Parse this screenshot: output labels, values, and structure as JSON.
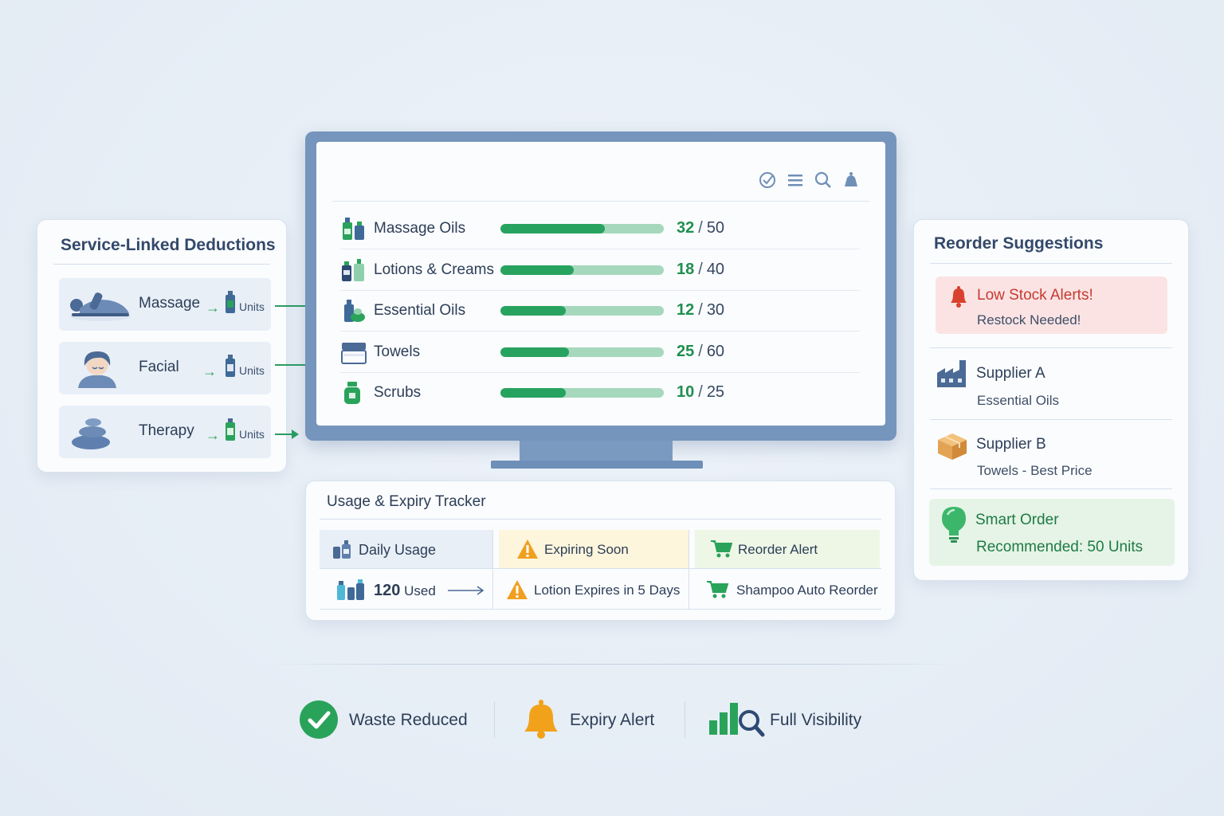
{
  "service_deductions": {
    "title": "Service-Linked Deductions",
    "services": [
      {
        "name": "Massage",
        "units_label": "Units",
        "icon": "massage-icon"
      },
      {
        "name": "Facial",
        "units_label": "Units",
        "icon": "facial-icon"
      },
      {
        "name": "Therapy",
        "units_label": "Units",
        "icon": "therapy-stones-icon"
      }
    ]
  },
  "inventory": {
    "toolbar_icons": [
      "check-circle-icon",
      "list-icon",
      "search-icon",
      "bell-icon"
    ],
    "items": [
      {
        "name": "Massage Oils",
        "current": "32",
        "total": "50",
        "level": 0.64,
        "icon": "oil-bottles-icon"
      },
      {
        "name": "Lotions & Creams",
        "current": "18",
        "total": "40",
        "level": 0.45,
        "icon": "lotion-bottles-icon"
      },
      {
        "name": "Essential Oils",
        "current": "12",
        "total": "30",
        "level": 0.4,
        "icon": "essential-oil-icon"
      },
      {
        "name": "Towels",
        "current": "25",
        "total": "60",
        "level": 0.42,
        "icon": "towel-icon"
      },
      {
        "name": "Scrubs",
        "current": "10",
        "total": "25",
        "level": 0.4,
        "icon": "scrub-jar-icon"
      }
    ],
    "count_separator": "/"
  },
  "usage_tracker": {
    "title": "Usage & Expiry Tracker",
    "headers": {
      "daily": "Daily Usage",
      "expiring": "Expiring Soon",
      "reorder": "Reorder Alert"
    },
    "row": {
      "used_value": "120",
      "used_label": "Used",
      "expiry_text": "Lotion Expires in 5 Days",
      "reorder_text": "Shampoo Auto Reorder"
    },
    "colors": {
      "expiring_bg": "#fdf5dc",
      "reorder_bg": "#eef7e6",
      "daily_bg": "#e8eff7"
    }
  },
  "reorder": {
    "title": "Reorder Suggestions",
    "alert": {
      "title": "Low Stock Alerts!",
      "subtitle": "Restock Needed!"
    },
    "suppliers": [
      {
        "name": "Supplier A",
        "detail": "Essential Oils",
        "icon": "factory-icon"
      },
      {
        "name": "Supplier B",
        "detail": "Towels - Best Price",
        "icon": "box-icon"
      }
    ],
    "smart_order": {
      "title": "Smart Order",
      "subtitle_label": "Recommended:",
      "subtitle_value": "50 Units"
    }
  },
  "footer": {
    "features": [
      {
        "label": "Waste Reduced",
        "icon": "check-circle-icon"
      },
      {
        "label": "Expiry Alert",
        "icon": "bell-icon"
      },
      {
        "label": "Full Visibility",
        "icon": "bar-chart-search-icon"
      }
    ]
  },
  "colors": {
    "accent_green": "#27a35f",
    "track_green": "#a6d8bd",
    "alert_red": "#c63b2f",
    "monitor_frame": "#7595bd",
    "amber": "#f2a21a"
  }
}
